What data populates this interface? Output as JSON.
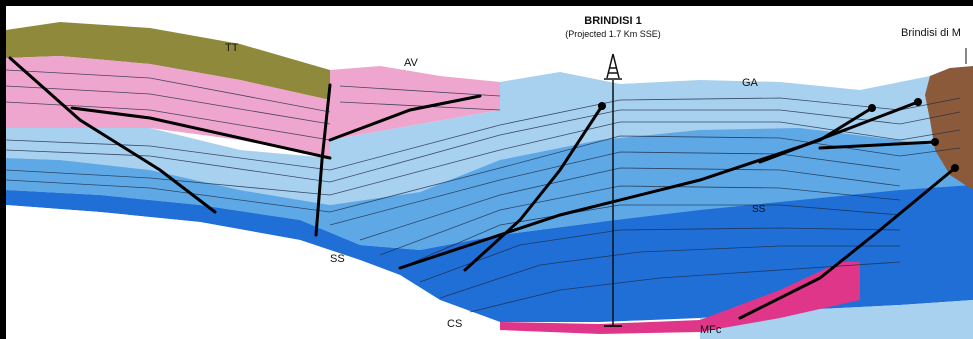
{
  "labels": {
    "tt": "TT",
    "av": "AV",
    "ga": "GA",
    "ss_upper": "SS",
    "ss_lower": "SS",
    "cs": "CS",
    "mfc": "MFc",
    "well_name": "BRINDISI 1",
    "well_note": "(Projected 1.7 Km SSE)",
    "brindisi_m": "Brindisi di M"
  },
  "colors": {
    "frame": "#000000",
    "tt_olive": "#8f8a3b",
    "pink_unit": "#eea6cf",
    "blue_light": "#a8d0ef",
    "blue_mid": "#5fa8e6",
    "blue_dark": "#1f6fd6",
    "magenta_mfc": "#e0368a",
    "brown_body": "#8a5a3a",
    "background": "#ffffff"
  },
  "icons": {
    "derrick": "oil-derrick-icon"
  }
}
